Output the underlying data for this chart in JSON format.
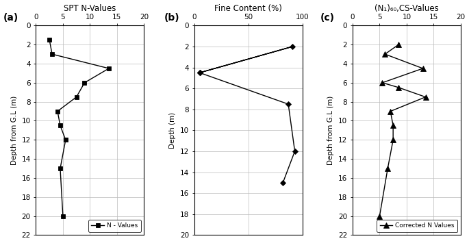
{
  "panel_a": {
    "title": "SPT N-Values",
    "label": "(a)",
    "ylabel": "Depth from G.L (m)",
    "xlim": [
      0,
      20
    ],
    "xticks": [
      0,
      5,
      10,
      15,
      20
    ],
    "xticklabels": [
      "0",
      "5",
      "10",
      "15",
      "20"
    ],
    "ylim": [
      22,
      0
    ],
    "yticks": [
      0,
      2,
      4,
      6,
      8,
      10,
      12,
      14,
      16,
      18,
      20,
      22
    ],
    "depths": [
      1.5,
      3.0,
      4.5,
      6.0,
      7.5,
      9.0,
      10.5,
      12.0,
      15.0,
      20.0
    ],
    "values": [
      2.5,
      3.0,
      13.5,
      9.0,
      7.5,
      4.0,
      4.5,
      5.5,
      4.5,
      5.0
    ],
    "legend_label": "N - Values",
    "marker": "s"
  },
  "panel_b": {
    "title": "Fine Content (%)",
    "label": "(b)",
    "ylabel": "Depth (m)",
    "xlim": [
      0,
      100
    ],
    "xticks": [
      0,
      50,
      100
    ],
    "xticklabels": [
      "0",
      "50",
      "100"
    ],
    "ylim": [
      20,
      0
    ],
    "yticks": [
      0,
      2,
      4,
      6,
      8,
      10,
      12,
      14,
      16,
      18,
      20
    ],
    "line1_depths": [
      4.5,
      2.0,
      4.5
    ],
    "line1_values": [
      5,
      91,
      5
    ],
    "line2_depths": [
      4.5,
      7.5,
      12.0,
      15.0
    ],
    "line2_values": [
      5,
      87,
      93,
      82
    ],
    "marker": "D"
  },
  "panel_c": {
    "title": "(N₁)₆₀,CS-Values",
    "label": "(c)",
    "ylabel": "Depth from G.L (m)",
    "xlim": [
      0,
      20
    ],
    "xticks": [
      0,
      5,
      10,
      15,
      20
    ],
    "xticklabels": [
      "0",
      "5",
      "10",
      "15",
      "20"
    ],
    "ylim": [
      22,
      0
    ],
    "yticks": [
      0,
      2,
      4,
      6,
      8,
      10,
      12,
      14,
      16,
      18,
      20,
      22
    ],
    "depths": [
      2.0,
      3.0,
      4.5,
      6.0,
      6.5,
      7.5,
      9.0,
      10.5,
      12.0,
      15.0,
      20.0
    ],
    "values": [
      8.5,
      6.0,
      13.0,
      5.5,
      8.5,
      13.5,
      7.0,
      7.5,
      7.5,
      6.5,
      5.0
    ],
    "legend_label": "Corrected N Values",
    "marker": "^"
  },
  "figure_bg": "#ffffff",
  "line_color": "#000000",
  "grid_color": "#bbbbbb",
  "figsize": [
    6.85,
    3.55
  ],
  "dpi": 100
}
